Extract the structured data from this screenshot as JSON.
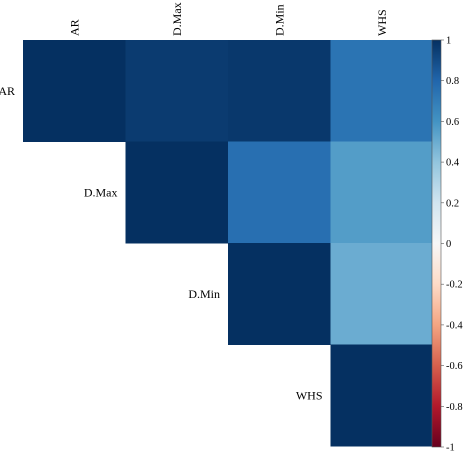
{
  "chart_data": {
    "type": "heatmap",
    "variables": [
      "AR",
      "D.Max",
      "D.Min",
      "WHS"
    ],
    "matrix": [
      [
        1.0,
        0.96,
        0.97,
        0.74
      ],
      [
        null,
        1.0,
        0.76,
        0.56
      ],
      [
        null,
        null,
        1.0,
        0.5
      ],
      [
        null,
        null,
        null,
        1.0
      ]
    ],
    "triangle": "upper",
    "colorbar": {
      "min": -1,
      "max": 1,
      "ticks": [
        "1",
        "0.8",
        "0.6",
        "0.4",
        "0.2",
        "0",
        "-0.2",
        "-0.4",
        "-0.6",
        "-0.8",
        "-1"
      ],
      "colors": [
        "#67001f",
        "#b2182b",
        "#d6604d",
        "#f4a582",
        "#fddbc7",
        "#f7f7f7",
        "#d1e5f0",
        "#92c5de",
        "#4393c3",
        "#2166ac",
        "#053061"
      ]
    },
    "legend_position": "right",
    "grid": false
  }
}
